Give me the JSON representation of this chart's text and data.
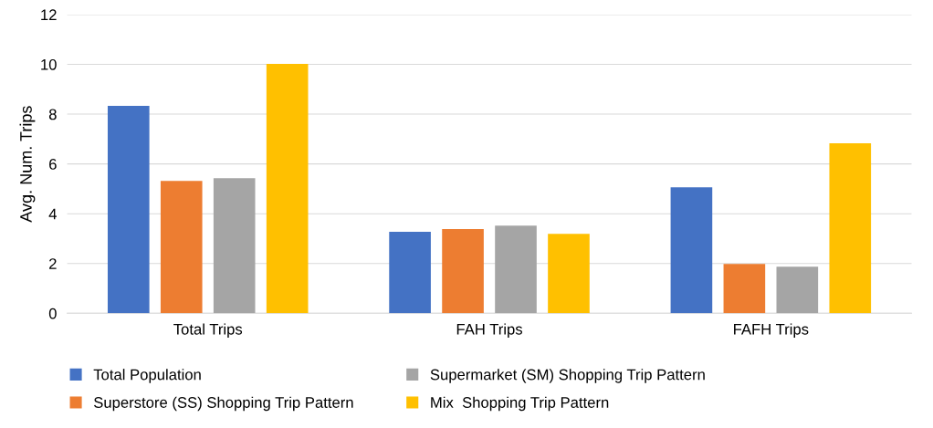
{
  "chart_data": {
    "type": "bar",
    "ylabel": "Avg. Num. Trips",
    "categories": [
      "Total Trips",
      "FAH Trips",
      "FAFH Trips"
    ],
    "series": [
      {
        "name": "Total Population",
        "color": "#4472c4",
        "values": [
          8.33,
          3.27,
          5.06
        ]
      },
      {
        "name": "Superstore (SS) Shopping Trip Pattern",
        "color": "#ed7d31",
        "values": [
          5.32,
          3.38,
          1.98
        ]
      },
      {
        "name": "Supermarket (SM) Shopping Trip Pattern",
        "color": "#a5a5a5",
        "values": [
          5.43,
          3.52,
          1.87
        ]
      },
      {
        "name": "Mix  Shopping Trip Pattern",
        "color": "#ffc000",
        "values": [
          10.02,
          3.19,
          6.83
        ]
      }
    ],
    "ylim": [
      0,
      12
    ],
    "yticks": [
      0,
      2,
      4,
      6,
      8,
      10,
      12
    ],
    "grid": "y",
    "legend": "bottom"
  }
}
